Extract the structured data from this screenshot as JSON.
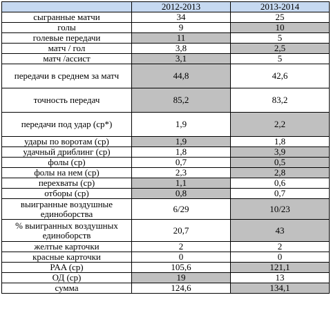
{
  "header": {
    "col0": "",
    "col1": "2012-2013",
    "col2": "2013-2014"
  },
  "rows": [
    {
      "label": "сыгранные матчи",
      "v1": "34",
      "v2": "25",
      "hl": [
        false,
        false,
        false
      ]
    },
    {
      "label": "голы",
      "v1": "9",
      "v2": "10",
      "hl": [
        false,
        false,
        true
      ]
    },
    {
      "label": "голевые передачи",
      "v1": "11",
      "v2": "5",
      "hl": [
        false,
        true,
        false
      ]
    },
    {
      "label": "матч / гол",
      "v1": "3,8",
      "v2": "2,5",
      "hl": [
        false,
        false,
        true
      ]
    },
    {
      "label": "матч /ассист",
      "v1": "3,1",
      "v2": "5",
      "hl": [
        false,
        true,
        false
      ]
    },
    {
      "label": "передачи в среднем за матч",
      "v1": "44,8",
      "v2": "42,6",
      "hl": [
        false,
        true,
        false
      ]
    },
    {
      "label": "точность передач",
      "v1": "85,2",
      "v2": "83,2",
      "hl": [
        false,
        true,
        false
      ]
    },
    {
      "label": "передачи под удар (ср*)",
      "v1": "1,9",
      "v2": "2,2",
      "hl": [
        false,
        false,
        true
      ]
    },
    {
      "label": "удары по воротам (ср)",
      "v1": "1,9",
      "v2": "1,8",
      "hl": [
        false,
        true,
        false
      ]
    },
    {
      "label": "удачный дриблинг (ср)",
      "v1": "1,8",
      "v2": "3,9",
      "hl": [
        false,
        false,
        true
      ]
    },
    {
      "label": "фолы (ср)",
      "v1": "0,7",
      "v2": "0,5",
      "hl": [
        false,
        false,
        true
      ]
    },
    {
      "label": "фолы на нем (ср)",
      "v1": "2,3",
      "v2": "2,8",
      "hl": [
        false,
        false,
        true
      ]
    },
    {
      "label": "перехваты (ср)",
      "v1": "1,1",
      "v2": "0,6",
      "hl": [
        false,
        true,
        false
      ]
    },
    {
      "label": "отборы (ср)",
      "v1": "0,8",
      "v2": "0,7",
      "hl": [
        false,
        true,
        false
      ]
    },
    {
      "label": "выигранные воздушные единоборства",
      "v1": "6/29",
      "v2": "10/23",
      "hl": [
        false,
        false,
        true
      ]
    },
    {
      "label": "% выигранных воздушных единоборств",
      "v1": "20,7",
      "v2": "43",
      "hl": [
        false,
        false,
        true
      ]
    },
    {
      "label": "желтые карточки",
      "v1": "2",
      "v2": "2",
      "hl": [
        false,
        false,
        false
      ]
    },
    {
      "label": "красные карточки",
      "v1": "0",
      "v2": "0",
      "hl": [
        false,
        false,
        false
      ]
    },
    {
      "label": "PAA (ср)",
      "v1": "105,6",
      "v2": "121,1",
      "hl": [
        false,
        false,
        true
      ]
    },
    {
      "label": "ОД (ср)",
      "v1": "19",
      "v2": "13",
      "hl": [
        false,
        true,
        false
      ]
    },
    {
      "label": "сумма",
      "v1": "124,6",
      "v2": "134,1",
      "hl": [
        false,
        false,
        true
      ]
    }
  ],
  "colors": {
    "header_bg": "#c6d9f1",
    "highlight_bg": "#c0c0c0",
    "border": "#000000"
  }
}
